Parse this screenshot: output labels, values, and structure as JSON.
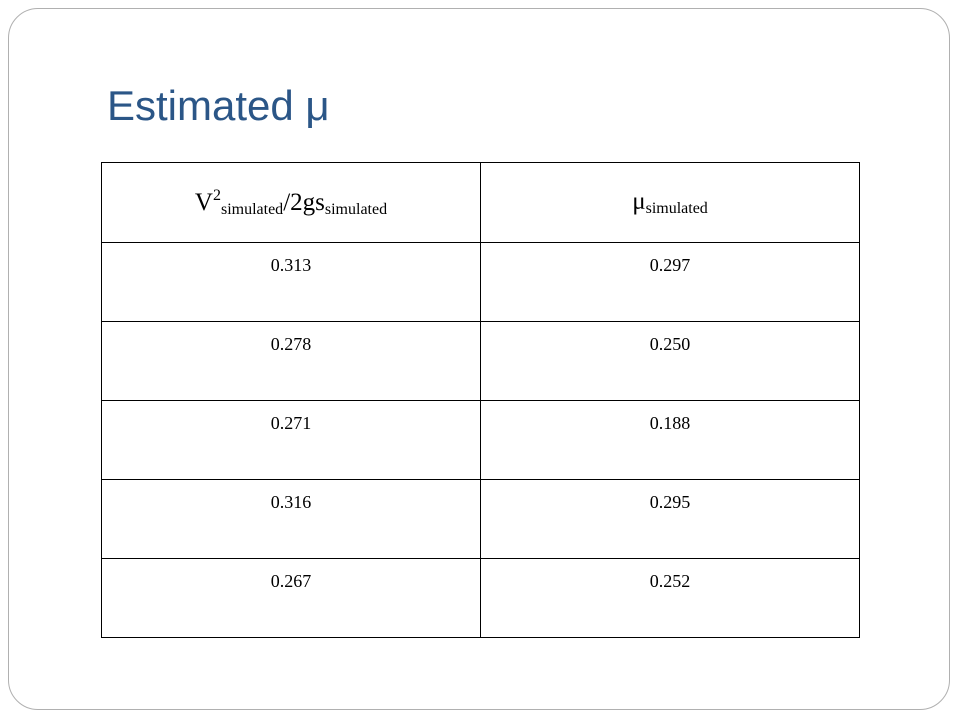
{
  "title": "Estimated μ",
  "table": {
    "header": [
      {
        "base": "V",
        "sup": "2",
        "sub1": "simulated",
        "mid": "/2gs",
        "sub2": "simulated"
      },
      {
        "base": "μ",
        "sub": "simulated"
      }
    ],
    "rows": [
      [
        "0.313",
        "0.297"
      ],
      [
        "0.278",
        "0.250"
      ],
      [
        "0.271",
        "0.188"
      ],
      [
        "0.316",
        "0.295"
      ],
      [
        "0.267",
        "0.252"
      ]
    ]
  }
}
